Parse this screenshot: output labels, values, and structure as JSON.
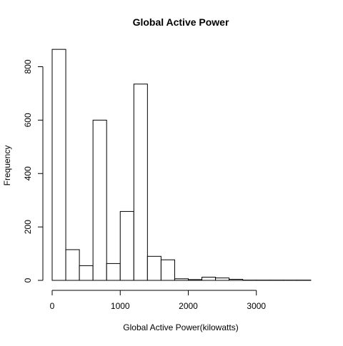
{
  "chart_data": {
    "type": "bar",
    "title": "Global Active Power",
    "xlabel": "Global Active Power(kilowatts)",
    "ylabel": "Frequency",
    "bin_width": 200,
    "bins_start": [
      0,
      200,
      400,
      600,
      800,
      1000,
      1200,
      1400,
      1600,
      1800,
      2000,
      2200,
      2400,
      2600,
      2800,
      3000,
      3200,
      3400,
      3600
    ],
    "values": [
      865,
      115,
      55,
      600,
      63,
      258,
      735,
      90,
      77,
      6,
      3,
      12,
      9,
      4,
      1,
      1,
      1,
      1,
      1
    ],
    "xlim": [
      0,
      3800
    ],
    "ylim": [
      0,
      865
    ],
    "x_ticks": [
      "0",
      "1000",
      "2000",
      "3000"
    ],
    "y_ticks": [
      "0",
      "200",
      "400",
      "600",
      "800"
    ],
    "grid": false,
    "legend": "none"
  }
}
